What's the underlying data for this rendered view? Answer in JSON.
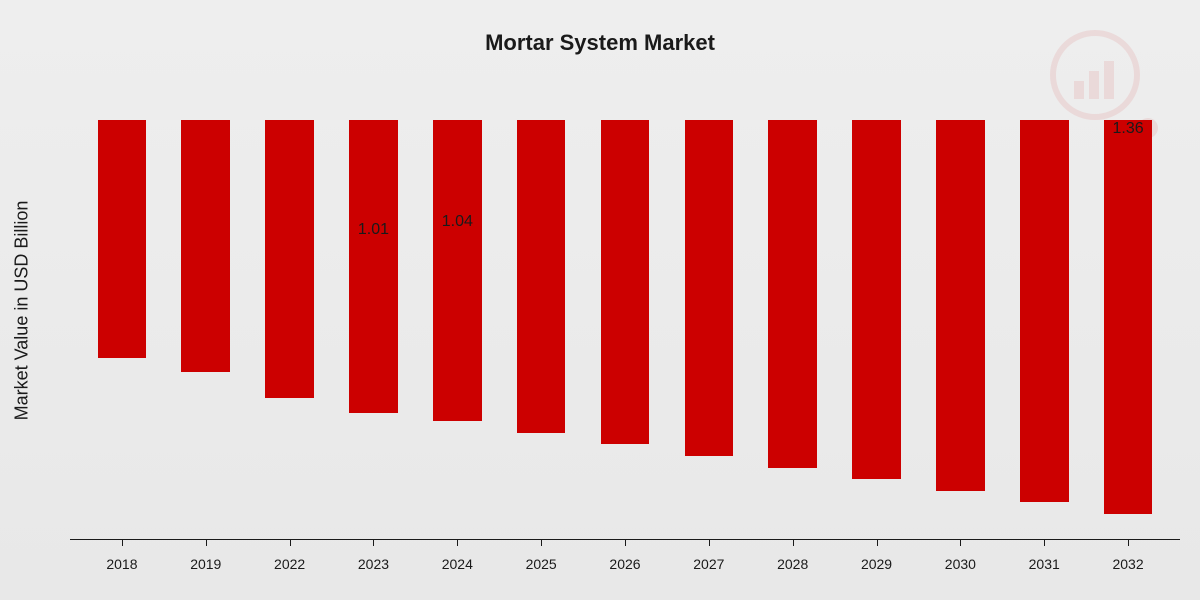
{
  "chart": {
    "type": "bar",
    "title": "Mortar System Market",
    "y_axis_label": "Market Value in USD Billion",
    "categories": [
      "2018",
      "2019",
      "2022",
      "2023",
      "2024",
      "2025",
      "2026",
      "2027",
      "2028",
      "2029",
      "2030",
      "2031",
      "2032"
    ],
    "values": [
      0.82,
      0.87,
      0.96,
      1.01,
      1.04,
      1.08,
      1.12,
      1.16,
      1.2,
      1.24,
      1.28,
      1.32,
      1.36
    ],
    "bar_labels": [
      "",
      "",
      "",
      "1.01",
      "1.04",
      "",
      "",
      "",
      "",
      "",
      "",
      "",
      "1.36"
    ],
    "bar_color": "#cc0000",
    "background_gradient": [
      "#eeeeee",
      "#e8e8e8"
    ],
    "axis_color": "#1a1a1a",
    "title_fontsize": 22,
    "y_label_fontsize": 18,
    "x_label_fontsize": 14,
    "bar_label_fontsize": 16,
    "ylim": [
      0,
      1.45
    ],
    "bar_width": 0.58
  }
}
